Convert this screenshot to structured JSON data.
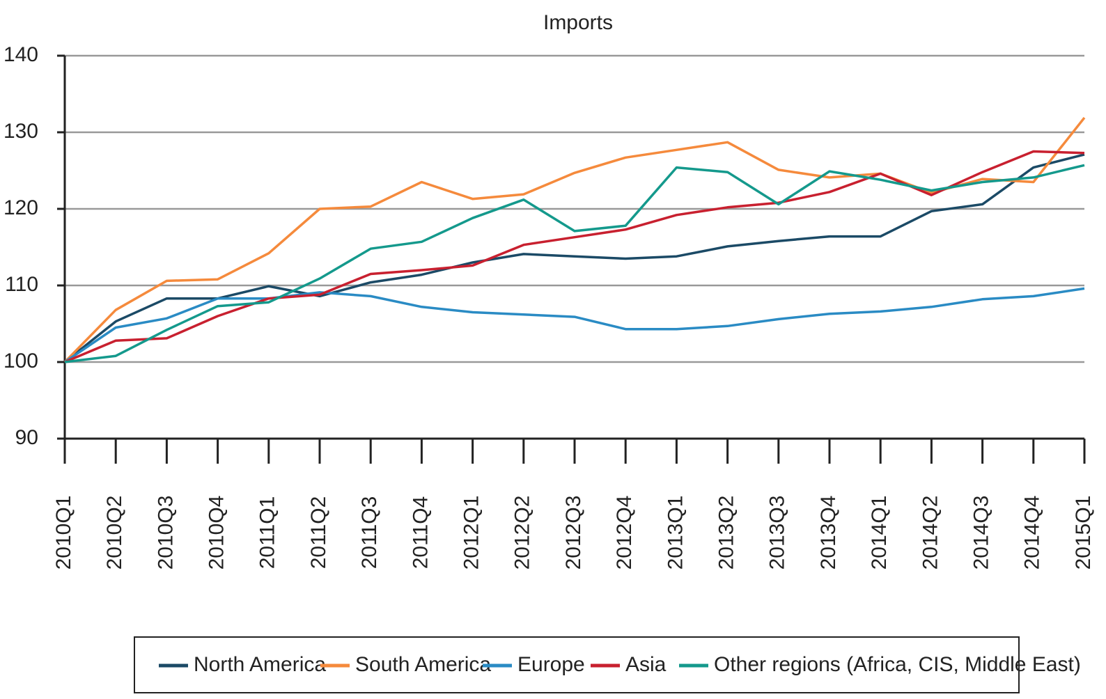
{
  "chart_data": {
    "type": "line",
    "title": "Imports",
    "categories": [
      "2010Q1",
      "2010Q2",
      "2010Q3",
      "2010Q4",
      "2011Q1",
      "2011Q2",
      "2011Q3",
      "2011Q4",
      "2012Q1",
      "2012Q2",
      "2012Q3",
      "2012Q4",
      "2013Q1",
      "2013Q2",
      "2013Q3",
      "2013Q4",
      "2014Q1",
      "2014Q2",
      "2014Q3",
      "2014Q4",
      "2015Q1"
    ],
    "series": [
      {
        "name": "North America",
        "color": "#1b4a66",
        "values": [
          100,
          105.3,
          108.3,
          108.3,
          109.9,
          108.6,
          110.4,
          111.4,
          113,
          114.1,
          113.8,
          113.5,
          113.8,
          115.1,
          115.8,
          116.4,
          116.4,
          119.7,
          120.6,
          125.4,
          127.1
        ]
      },
      {
        "name": "South America",
        "color": "#f58a3c",
        "values": [
          100,
          106.8,
          110.6,
          110.8,
          114.2,
          120,
          120.3,
          123.5,
          121.3,
          121.9,
          124.7,
          126.7,
          127.7,
          128.7,
          125.1,
          124.1,
          124.6,
          122.1,
          123.9,
          123.5,
          131.9
        ]
      },
      {
        "name": "Europe",
        "color": "#2a8bc4",
        "values": [
          100,
          104.5,
          105.7,
          108.3,
          108.3,
          109.1,
          108.6,
          107.2,
          106.5,
          106.2,
          105.9,
          104.3,
          104.3,
          104.7,
          105.6,
          106.3,
          106.6,
          107.2,
          108.2,
          108.6,
          109.6
        ]
      },
      {
        "name": "Asia",
        "color": "#c8202f",
        "values": [
          100,
          102.8,
          103.1,
          106,
          108.3,
          108.8,
          111.5,
          112,
          112.6,
          115.3,
          116.3,
          117.3,
          119.2,
          120.2,
          120.8,
          122.2,
          124.6,
          121.8,
          124.8,
          127.5,
          127.3
        ]
      },
      {
        "name": "Other regions (Africa, CIS, Middle East)",
        "color": "#14998c",
        "values": [
          100,
          100.8,
          104.2,
          107.3,
          107.8,
          110.9,
          114.8,
          115.7,
          118.8,
          121.2,
          117.1,
          117.8,
          125.4,
          124.8,
          120.6,
          124.9,
          123.8,
          122.4,
          123.5,
          124.1,
          125.7
        ]
      }
    ],
    "ylim": [
      90,
      140
    ],
    "yticks": [
      90,
      100,
      110,
      120,
      130,
      140
    ],
    "grid": true
  }
}
